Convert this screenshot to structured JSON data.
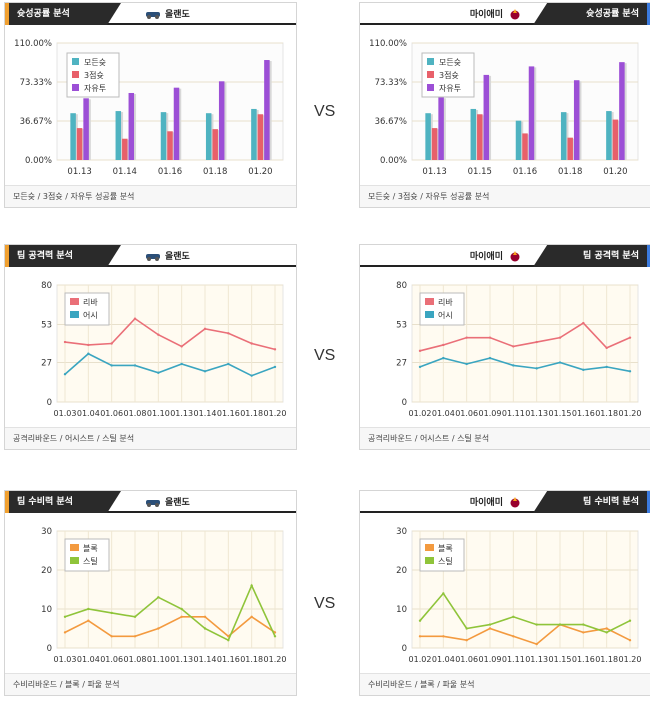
{
  "vs_label": "VS",
  "sections": [
    {
      "left": {
        "tab": "슛성공률 분석",
        "team": "올랜도",
        "footer": "모든슛 / 3점슛 / 자유투 성공률 분석",
        "chart_data": {
          "type": "bar",
          "categories": [
            "01.13",
            "01.14",
            "01.16",
            "01.18",
            "01.20"
          ],
          "ylim": [
            0,
            110
          ],
          "ytick_labels": [
            "0.00%",
            "36.67%",
            "73.33%",
            "110.00%"
          ],
          "series": [
            {
              "name": "모든슛",
              "color": "#4fb3c1",
              "values": [
                44,
                46,
                45,
                44,
                48
              ]
            },
            {
              "name": "3점슛",
              "color": "#e8606a",
              "values": [
                30,
                20,
                27,
                29,
                43
              ]
            },
            {
              "name": "자유투",
              "color": "#9c4fd6",
              "values": [
                58,
                63,
                68,
                74,
                94
              ]
            }
          ]
        }
      },
      "right": {
        "tab": "슛성공률 분석",
        "team": "마이애미",
        "footer": "모든슛 / 3점슛 / 자유투 성공률 분석",
        "chart_data": {
          "type": "bar",
          "categories": [
            "01.13",
            "01.15",
            "01.16",
            "01.18",
            "01.20"
          ],
          "ylim": [
            0,
            110
          ],
          "ytick_labels": [
            "0.00%",
            "36.67%",
            "73.33%",
            "110.00%"
          ],
          "series": [
            {
              "name": "모든슛",
              "color": "#4fb3c1",
              "values": [
                44,
                48,
                37,
                45,
                46
              ]
            },
            {
              "name": "3점슛",
              "color": "#e8606a",
              "values": [
                30,
                43,
                25,
                21,
                38
              ]
            },
            {
              "name": "자유투",
              "color": "#9c4fd6",
              "values": [
                59,
                80,
                88,
                75,
                92
              ]
            }
          ]
        }
      }
    },
    {
      "left": {
        "tab": "팀 공격력 분석",
        "team": "올랜도",
        "footer": "공격리바운드 / 어시스트 / 스틸 분석",
        "chart_data": {
          "type": "line",
          "categories": [
            "01.03",
            "01.04",
            "01.06",
            "01.08",
            "01.10",
            "01.13",
            "01.14",
            "01.16",
            "01.18",
            "01.20"
          ],
          "ylim": [
            0,
            80
          ],
          "yticks": [
            0,
            27,
            53,
            80
          ],
          "series": [
            {
              "name": "리바",
              "color": "#ea6f78",
              "values": [
                41,
                39,
                40,
                57,
                46,
                38,
                50,
                47,
                40,
                36
              ]
            },
            {
              "name": "어시",
              "color": "#3aa5c0",
              "values": [
                19,
                33,
                25,
                25,
                20,
                26,
                21,
                26,
                18,
                24
              ]
            }
          ]
        }
      },
      "right": {
        "tab": "팀 공격력 분석",
        "team": "마이애미",
        "footer": "공격리바운드 / 어시스트 / 스틸 분석",
        "chart_data": {
          "type": "line",
          "categories": [
            "01.02",
            "01.04",
            "01.06",
            "01.09",
            "01.11",
            "01.13",
            "01.15",
            "01.16",
            "01.18",
            "01.20"
          ],
          "ylim": [
            0,
            80
          ],
          "yticks": [
            0,
            27,
            53,
            80
          ],
          "series": [
            {
              "name": "리바",
              "color": "#ea6f78",
              "values": [
                35,
                39,
                44,
                44,
                38,
                41,
                44,
                54,
                37,
                44
              ]
            },
            {
              "name": "어시",
              "color": "#3aa5c0",
              "values": [
                24,
                30,
                26,
                30,
                25,
                23,
                27,
                22,
                24,
                21
              ]
            }
          ]
        }
      }
    },
    {
      "left": {
        "tab": "팀 수비력 분석",
        "team": "올랜도",
        "footer": "수비리바운드 / 블록 / 파울 분석",
        "chart_data": {
          "type": "line",
          "categories": [
            "01.03",
            "01.04",
            "01.06",
            "01.08",
            "01.10",
            "01.13",
            "01.14",
            "01.16",
            "01.18",
            "01.20"
          ],
          "ylim": [
            0,
            30
          ],
          "yticks": [
            0,
            10,
            20,
            30
          ],
          "series": [
            {
              "name": "블록",
              "color": "#f39a3f",
              "values": [
                4,
                7,
                3,
                3,
                5,
                8,
                8,
                3,
                8,
                4
              ]
            },
            {
              "name": "스틸",
              "color": "#8fc43a",
              "values": [
                8,
                10,
                9,
                8,
                13,
                10,
                5,
                2,
                16,
                3
              ]
            }
          ]
        }
      },
      "right": {
        "tab": "팀 수비력 분석",
        "team": "마이애미",
        "footer": "수비리바운드 / 블록 / 파울 분석",
        "chart_data": {
          "type": "line",
          "categories": [
            "01.02",
            "01.04",
            "01.06",
            "01.09",
            "01.11",
            "01.13",
            "01.15",
            "01.16",
            "01.18",
            "01.20"
          ],
          "ylim": [
            0,
            30
          ],
          "yticks": [
            0,
            10,
            20,
            30
          ],
          "series": [
            {
              "name": "블록",
              "color": "#f39a3f",
              "values": [
                3,
                3,
                2,
                5,
                3,
                1,
                6,
                4,
                5,
                2
              ]
            },
            {
              "name": "스틸",
              "color": "#8fc43a",
              "values": [
                7,
                14,
                5,
                6,
                8,
                6,
                6,
                6,
                4,
                7
              ]
            }
          ]
        }
      }
    }
  ]
}
